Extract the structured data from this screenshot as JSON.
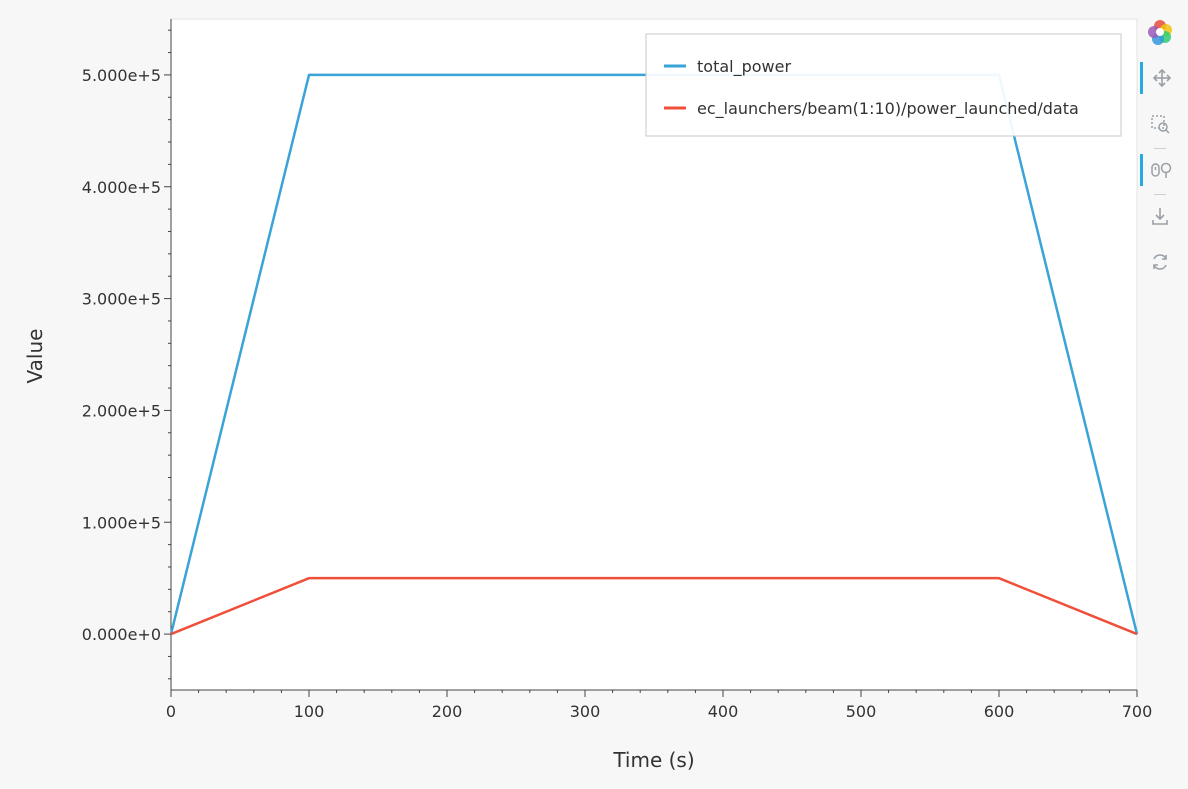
{
  "chart_data": {
    "type": "line",
    "x": [
      0,
      100,
      600,
      700
    ],
    "series": [
      {
        "name": "total_power",
        "values": [
          0,
          500000,
          500000,
          0
        ],
        "color": "#3aa3d8"
      },
      {
        "name": "ec_launchers/beam(1:10)/power_launched/data",
        "values": [
          0,
          50000,
          50000,
          0
        ],
        "color": "#f04f3a"
      }
    ],
    "xlabel": "Time (s)",
    "ylabel": "Value",
    "xlim": [
      0,
      700
    ],
    "ylim": [
      -50000,
      550000
    ],
    "x_ticks": [
      "0",
      "100",
      "200",
      "300",
      "400",
      "500",
      "600",
      "700"
    ],
    "y_ticks": [
      "0.000e+0",
      "1.000e+5",
      "2.000e+5",
      "3.000e+5",
      "4.000e+5",
      "5.000e+5"
    ],
    "grid": false,
    "legend_position": "top-right"
  },
  "toolbar": {
    "logo_icon": "bokeh-logo-icon",
    "tools": [
      {
        "name": "pan-icon",
        "active": true
      },
      {
        "name": "box-zoom-icon",
        "active": false
      },
      {
        "name": "wheel-zoom-icon",
        "active": true
      },
      {
        "name": "save-icon",
        "active": false
      },
      {
        "name": "reset-icon",
        "active": false
      }
    ]
  },
  "colors": {
    "plot_background": "#ffffff",
    "page_background": "#f7f7f7",
    "axis": "#444444",
    "tick_label": "#333333",
    "legend_border": "#c8c8c8"
  }
}
